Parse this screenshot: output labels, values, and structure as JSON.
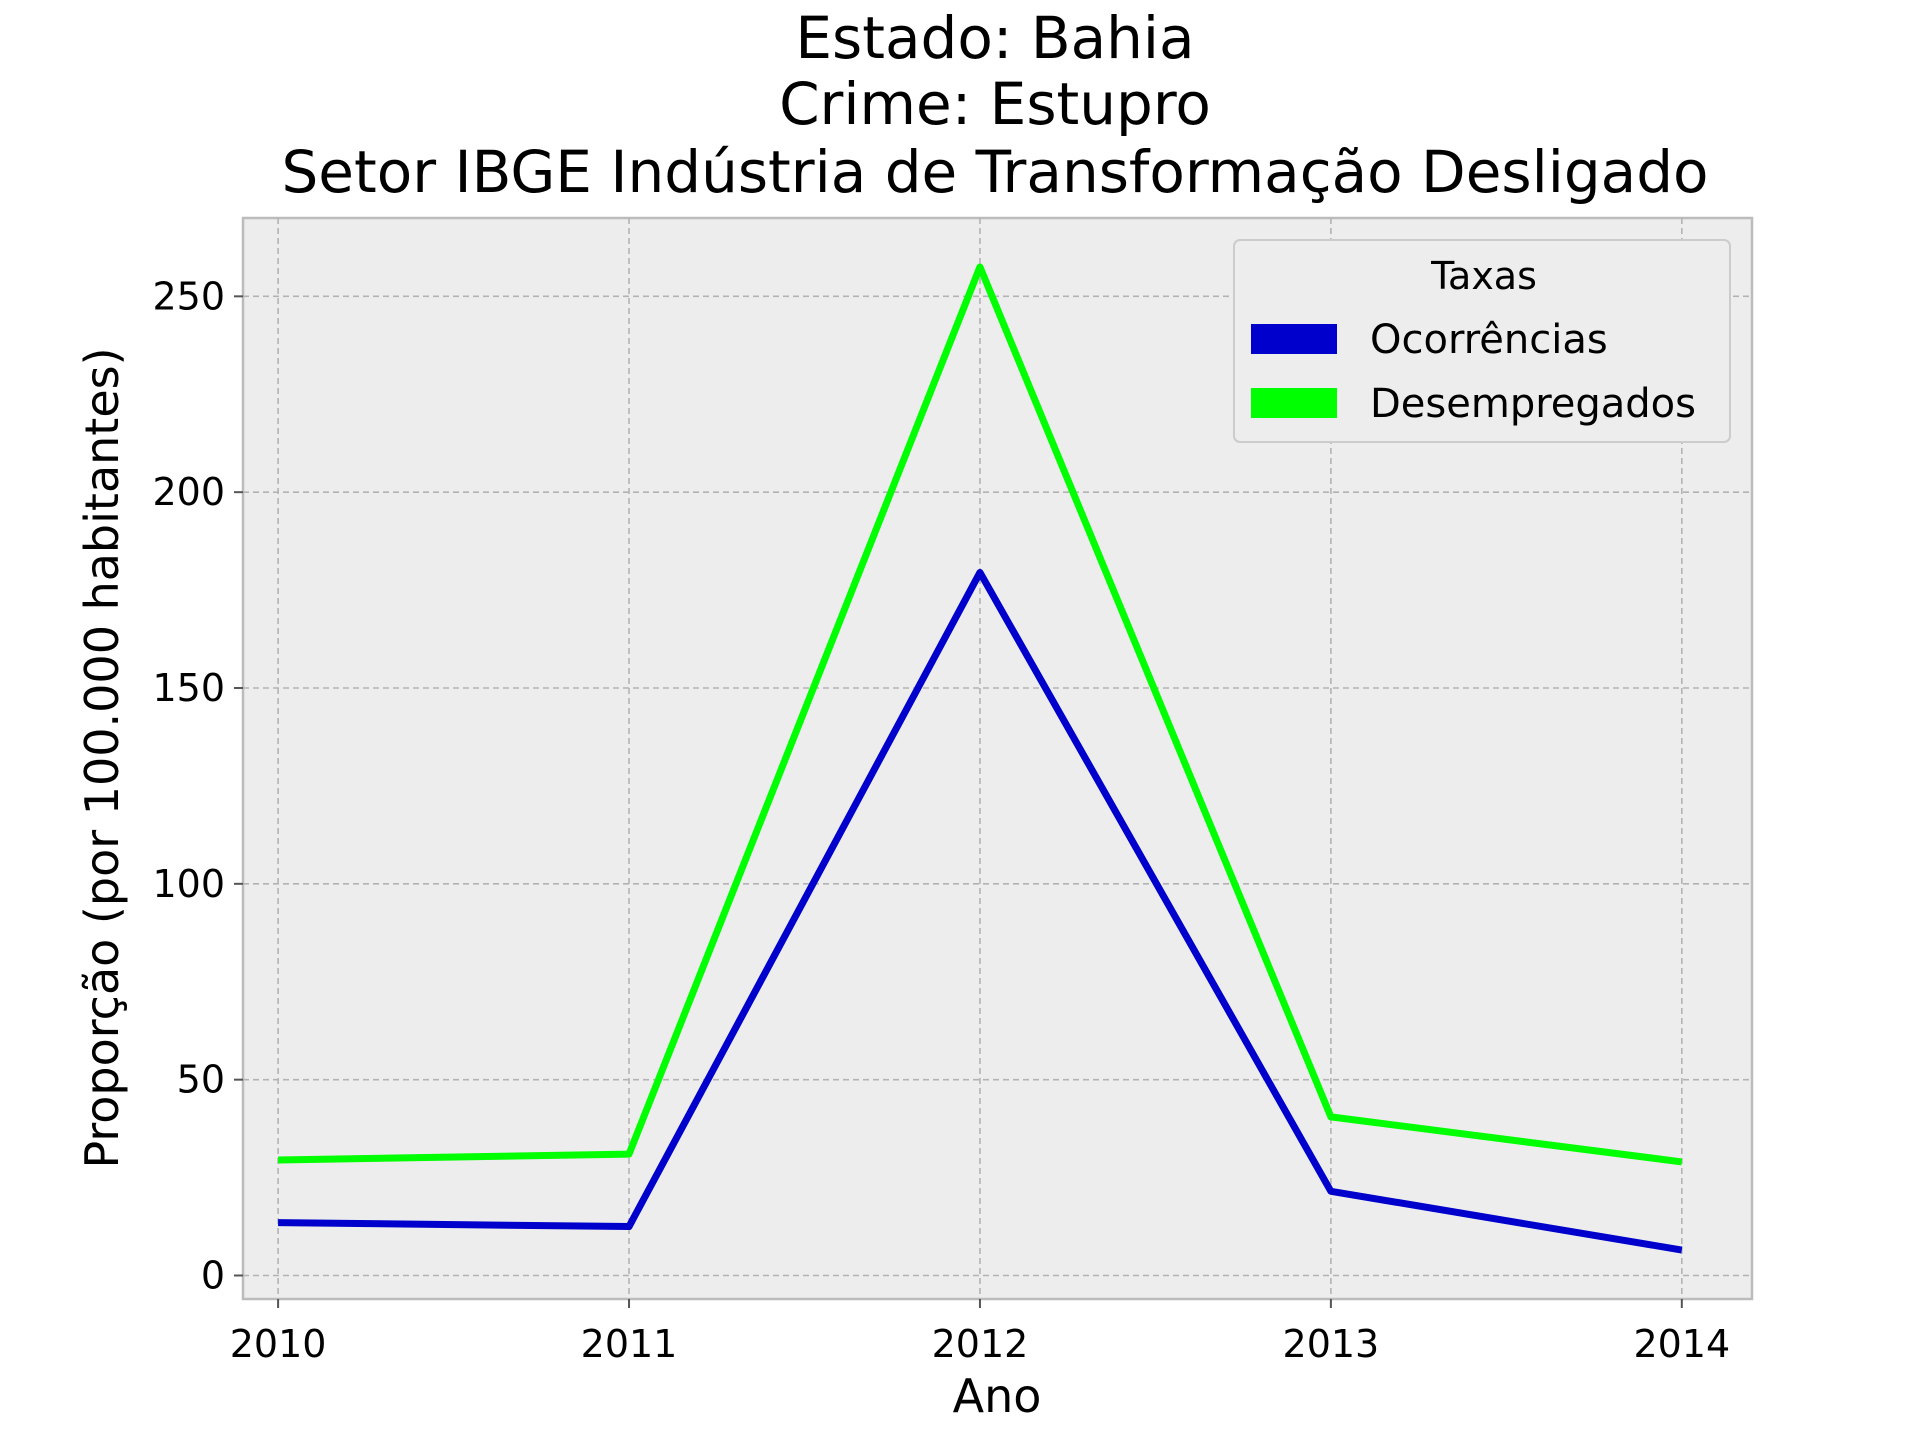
{
  "title": {
    "line1": "Estado: Bahia",
    "line2": "Crime: Estupro",
    "line3": "Setor IBGE  Indústria de Transformação   Desligado"
  },
  "chart_data": {
    "type": "line",
    "x": [
      2010,
      2011,
      2012,
      2013,
      2014
    ],
    "x_tick_labels": [
      "2010",
      "2011",
      "2012",
      "2013",
      "2014"
    ],
    "y_ticks": [
      0,
      50,
      100,
      150,
      200,
      250
    ],
    "xlabel": "Ano",
    "ylabel": "Proporção (por 100.000 habitantes)",
    "xlim": [
      2009.9,
      2014.2
    ],
    "ylim": [
      -6,
      270
    ],
    "grid": true,
    "legend": {
      "title": "Taxas",
      "placement": "top-right"
    },
    "series": [
      {
        "name": "Ocorrências",
        "color": "#0000cc",
        "values": [
          13.5,
          12.5,
          179.5,
          21.5,
          6.5
        ]
      },
      {
        "name": "Desempregados",
        "color": "#00ff00",
        "values": [
          29.5,
          31,
          257.5,
          40.5,
          29
        ]
      }
    ]
  }
}
